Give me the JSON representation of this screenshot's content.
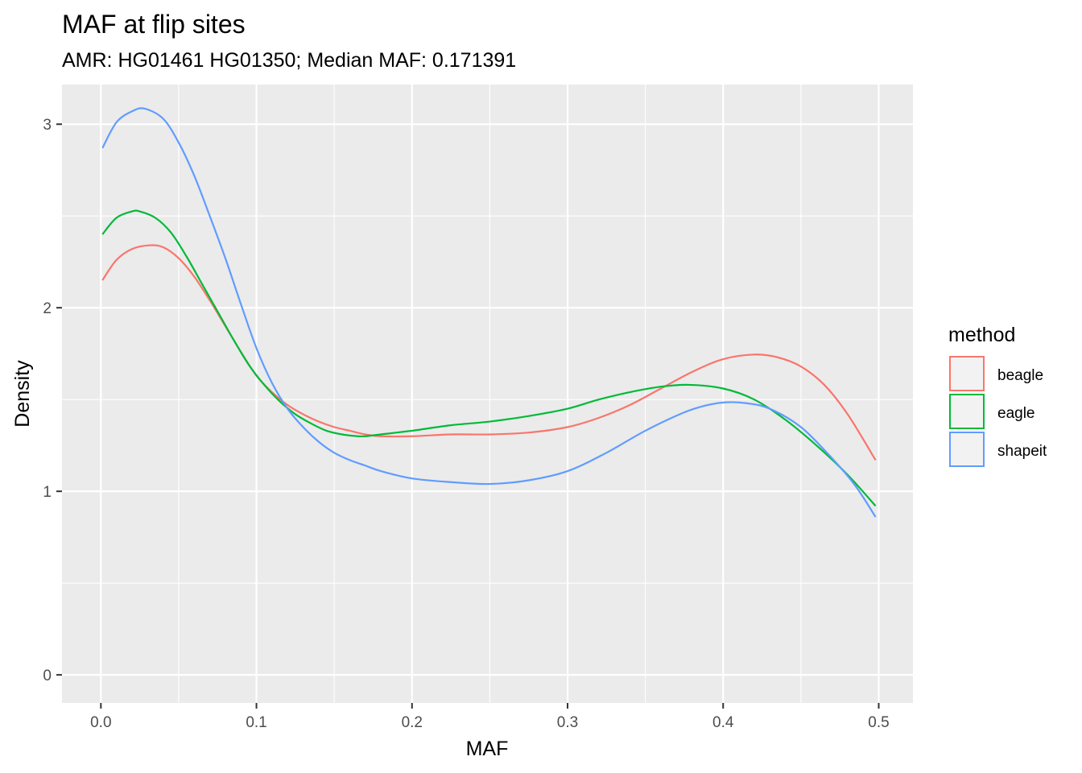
{
  "chart_data": {
    "type": "line",
    "title": "MAF at flip sites",
    "subtitle": "AMR: HG01461 HG01350; Median MAF: 0.171391",
    "xlabel": "MAF",
    "ylabel": "Density",
    "xlim": [
      -0.025,
      0.522
    ],
    "ylim": [
      -0.153,
      3.216
    ],
    "x_ticks": [
      0.0,
      0.1,
      0.2,
      0.3,
      0.4,
      0.5
    ],
    "x_tick_labels": [
      "0.0",
      "0.1",
      "0.2",
      "0.3",
      "0.4",
      "0.5"
    ],
    "y_ticks": [
      0,
      1,
      2,
      3
    ],
    "y_tick_labels": [
      "0",
      "1",
      "2",
      "3"
    ],
    "grid": true,
    "legend": {
      "title": "method",
      "position": "right"
    },
    "series": [
      {
        "name": "beagle",
        "color": "#F8766D",
        "x": [
          0.001,
          0.01,
          0.02,
          0.031,
          0.04,
          0.05,
          0.06,
          0.07,
          0.08,
          0.09,
          0.1,
          0.11,
          0.12,
          0.13,
          0.14,
          0.15,
          0.16,
          0.17,
          0.18,
          0.2,
          0.225,
          0.25,
          0.275,
          0.3,
          0.32,
          0.34,
          0.36,
          0.38,
          0.4,
          0.42,
          0.435,
          0.45,
          0.465,
          0.48,
          0.498
        ],
        "y": [
          2.15,
          2.26,
          2.32,
          2.34,
          2.33,
          2.27,
          2.17,
          2.04,
          1.9,
          1.76,
          1.63,
          1.54,
          1.47,
          1.42,
          1.38,
          1.35,
          1.33,
          1.31,
          1.3,
          1.3,
          1.31,
          1.31,
          1.32,
          1.35,
          1.4,
          1.47,
          1.56,
          1.65,
          1.72,
          1.745,
          1.73,
          1.68,
          1.58,
          1.42,
          1.17
        ]
      },
      {
        "name": "eagle",
        "color": "#00BA38",
        "x": [
          0.001,
          0.01,
          0.02,
          0.025,
          0.035,
          0.045,
          0.055,
          0.065,
          0.075,
          0.085,
          0.095,
          0.105,
          0.115,
          0.125,
          0.135,
          0.145,
          0.155,
          0.165,
          0.17,
          0.18,
          0.2,
          0.225,
          0.25,
          0.275,
          0.3,
          0.32,
          0.34,
          0.36,
          0.378,
          0.4,
          0.42,
          0.44,
          0.46,
          0.48,
          0.498
        ],
        "y": [
          2.4,
          2.49,
          2.525,
          2.525,
          2.49,
          2.41,
          2.28,
          2.13,
          1.98,
          1.83,
          1.69,
          1.58,
          1.49,
          1.42,
          1.37,
          1.33,
          1.31,
          1.3,
          1.3,
          1.31,
          1.33,
          1.36,
          1.38,
          1.41,
          1.45,
          1.5,
          1.54,
          1.57,
          1.58,
          1.56,
          1.5,
          1.39,
          1.25,
          1.09,
          0.92
        ]
      },
      {
        "name": "shapeit",
        "color": "#619CFF",
        "x": [
          0.001,
          0.01,
          0.02,
          0.028,
          0.04,
          0.05,
          0.06,
          0.07,
          0.08,
          0.09,
          0.1,
          0.11,
          0.12,
          0.13,
          0.14,
          0.15,
          0.16,
          0.17,
          0.18,
          0.2,
          0.225,
          0.25,
          0.275,
          0.3,
          0.325,
          0.35,
          0.375,
          0.39,
          0.402,
          0.415,
          0.43,
          0.45,
          0.47,
          0.485,
          0.498
        ],
        "y": [
          2.87,
          3.01,
          3.07,
          3.085,
          3.03,
          2.9,
          2.72,
          2.5,
          2.27,
          2.02,
          1.78,
          1.59,
          1.45,
          1.35,
          1.27,
          1.21,
          1.17,
          1.14,
          1.11,
          1.07,
          1.05,
          1.04,
          1.06,
          1.11,
          1.21,
          1.33,
          1.43,
          1.47,
          1.485,
          1.48,
          1.45,
          1.35,
          1.18,
          1.03,
          0.86
        ]
      }
    ]
  }
}
